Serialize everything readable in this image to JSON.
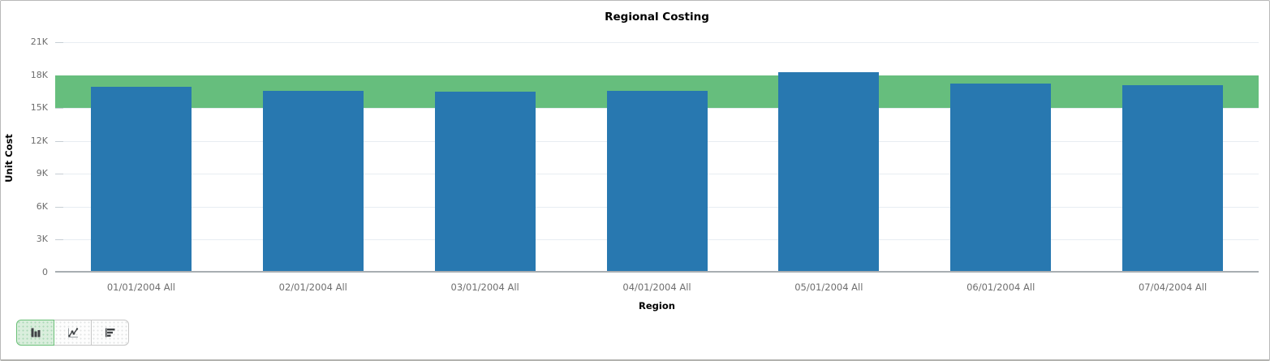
{
  "title": "Regional Costing",
  "chart_data": {
    "type": "bar",
    "title": "Regional Costing",
    "xlabel": "Region",
    "ylabel": "Unit Cost",
    "categories": [
      "01/01/2004 All",
      "02/01/2004 All",
      "03/01/2004 All",
      "04/01/2004 All",
      "05/01/2004 All",
      "06/01/2004 All",
      "07/04/2004 All"
    ],
    "values": [
      16950,
      16550,
      16500,
      16550,
      18250,
      17250,
      17100
    ],
    "ylim": [
      0,
      21000
    ],
    "ytick_step": 3000,
    "ytick_labels": [
      "0",
      "3K",
      "6K",
      "9K",
      "12K",
      "15K",
      "18K",
      "21K"
    ],
    "grid": true,
    "legend": "none",
    "target_band": {
      "from": 15000,
      "to": 18000
    }
  },
  "colors": {
    "bar": "#2878b0",
    "band": "#66be7d",
    "gridline": "#e8edf2",
    "zero_line": "#a8aeb2",
    "tick_label": "#6e6e6e"
  },
  "toolbar": {
    "buttons": [
      {
        "id": "bar-chart",
        "selected": true
      },
      {
        "id": "line-chart",
        "selected": false
      },
      {
        "id": "horizontal-bar-chart",
        "selected": false
      }
    ]
  }
}
